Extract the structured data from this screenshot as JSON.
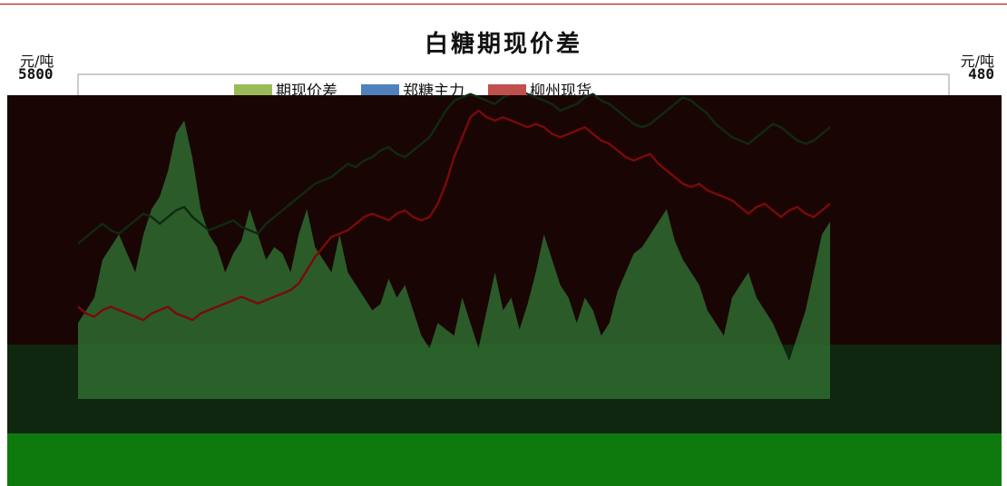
{
  "chart_data": {
    "type": "line",
    "title": "白糖期现价差",
    "left_axis": {
      "unit": "元/吨",
      "top_tick": "5800"
    },
    "right_axis": {
      "unit": "元/吨",
      "top_tick": "480"
    },
    "series": [
      {
        "name": "期现价差",
        "kind": "area",
        "axis": "right",
        "color": "#2f6b2f",
        "legend_color": "#9bbb59",
        "values": [
          120,
          140,
          160,
          220,
          240,
          260,
          230,
          200,
          260,
          300,
          320,
          360,
          420,
          440,
          380,
          300,
          260,
          240,
          200,
          230,
          250,
          300,
          260,
          220,
          240,
          230,
          200,
          260,
          300,
          240,
          220,
          200,
          260,
          200,
          180,
          160,
          140,
          150,
          190,
          160,
          180,
          140,
          100,
          80,
          120,
          110,
          100,
          160,
          120,
          80,
          140,
          200,
          140,
          160,
          110,
          150,
          200,
          260,
          220,
          180,
          160,
          120,
          160,
          140,
          100,
          120,
          170,
          200,
          230,
          240,
          260,
          280,
          300,
          250,
          220,
          200,
          180,
          140,
          120,
          100,
          160,
          180,
          200,
          160,
          140,
          120,
          90,
          60,
          100,
          140,
          200,
          260,
          280
        ]
      },
      {
        "name": "郑糖主力",
        "kind": "line",
        "axis": "left",
        "color": "#0f2a12",
        "legend_color": "#4f81bd",
        "values": [
          5340,
          5360,
          5380,
          5400,
          5380,
          5370,
          5390,
          5410,
          5430,
          5420,
          5400,
          5420,
          5440,
          5450,
          5420,
          5400,
          5380,
          5390,
          5400,
          5410,
          5390,
          5380,
          5370,
          5400,
          5420,
          5440,
          5460,
          5480,
          5500,
          5520,
          5530,
          5540,
          5560,
          5580,
          5570,
          5590,
          5600,
          5620,
          5630,
          5610,
          5600,
          5620,
          5640,
          5660,
          5700,
          5740,
          5770,
          5780,
          5790,
          5780,
          5770,
          5760,
          5780,
          5790,
          5800,
          5790,
          5780,
          5770,
          5760,
          5740,
          5750,
          5760,
          5780,
          5790,
          5770,
          5760,
          5740,
          5720,
          5700,
          5690,
          5700,
          5720,
          5740,
          5760,
          5780,
          5770,
          5750,
          5730,
          5700,
          5680,
          5660,
          5650,
          5640,
          5660,
          5680,
          5700,
          5690,
          5670,
          5650,
          5640,
          5650,
          5670,
          5690
        ]
      },
      {
        "name": "柳州现货",
        "kind": "line",
        "axis": "left",
        "color": "#7a0a0a",
        "legend_color": "#c0504d",
        "values": [
          5150,
          5130,
          5120,
          5140,
          5150,
          5140,
          5130,
          5120,
          5110,
          5130,
          5140,
          5150,
          5130,
          5120,
          5110,
          5130,
          5140,
          5150,
          5160,
          5170,
          5180,
          5170,
          5160,
          5170,
          5180,
          5190,
          5200,
          5220,
          5260,
          5300,
          5330,
          5360,
          5370,
          5380,
          5400,
          5420,
          5430,
          5420,
          5410,
          5430,
          5440,
          5420,
          5410,
          5420,
          5460,
          5520,
          5600,
          5660,
          5720,
          5740,
          5720,
          5710,
          5720,
          5710,
          5700,
          5690,
          5700,
          5690,
          5670,
          5660,
          5670,
          5680,
          5690,
          5670,
          5650,
          5640,
          5620,
          5600,
          5590,
          5600,
          5610,
          5580,
          5560,
          5540,
          5520,
          5510,
          5520,
          5500,
          5490,
          5480,
          5470,
          5450,
          5430,
          5450,
          5460,
          5440,
          5420,
          5440,
          5450,
          5430,
          5420,
          5440,
          5460
        ]
      }
    ]
  }
}
